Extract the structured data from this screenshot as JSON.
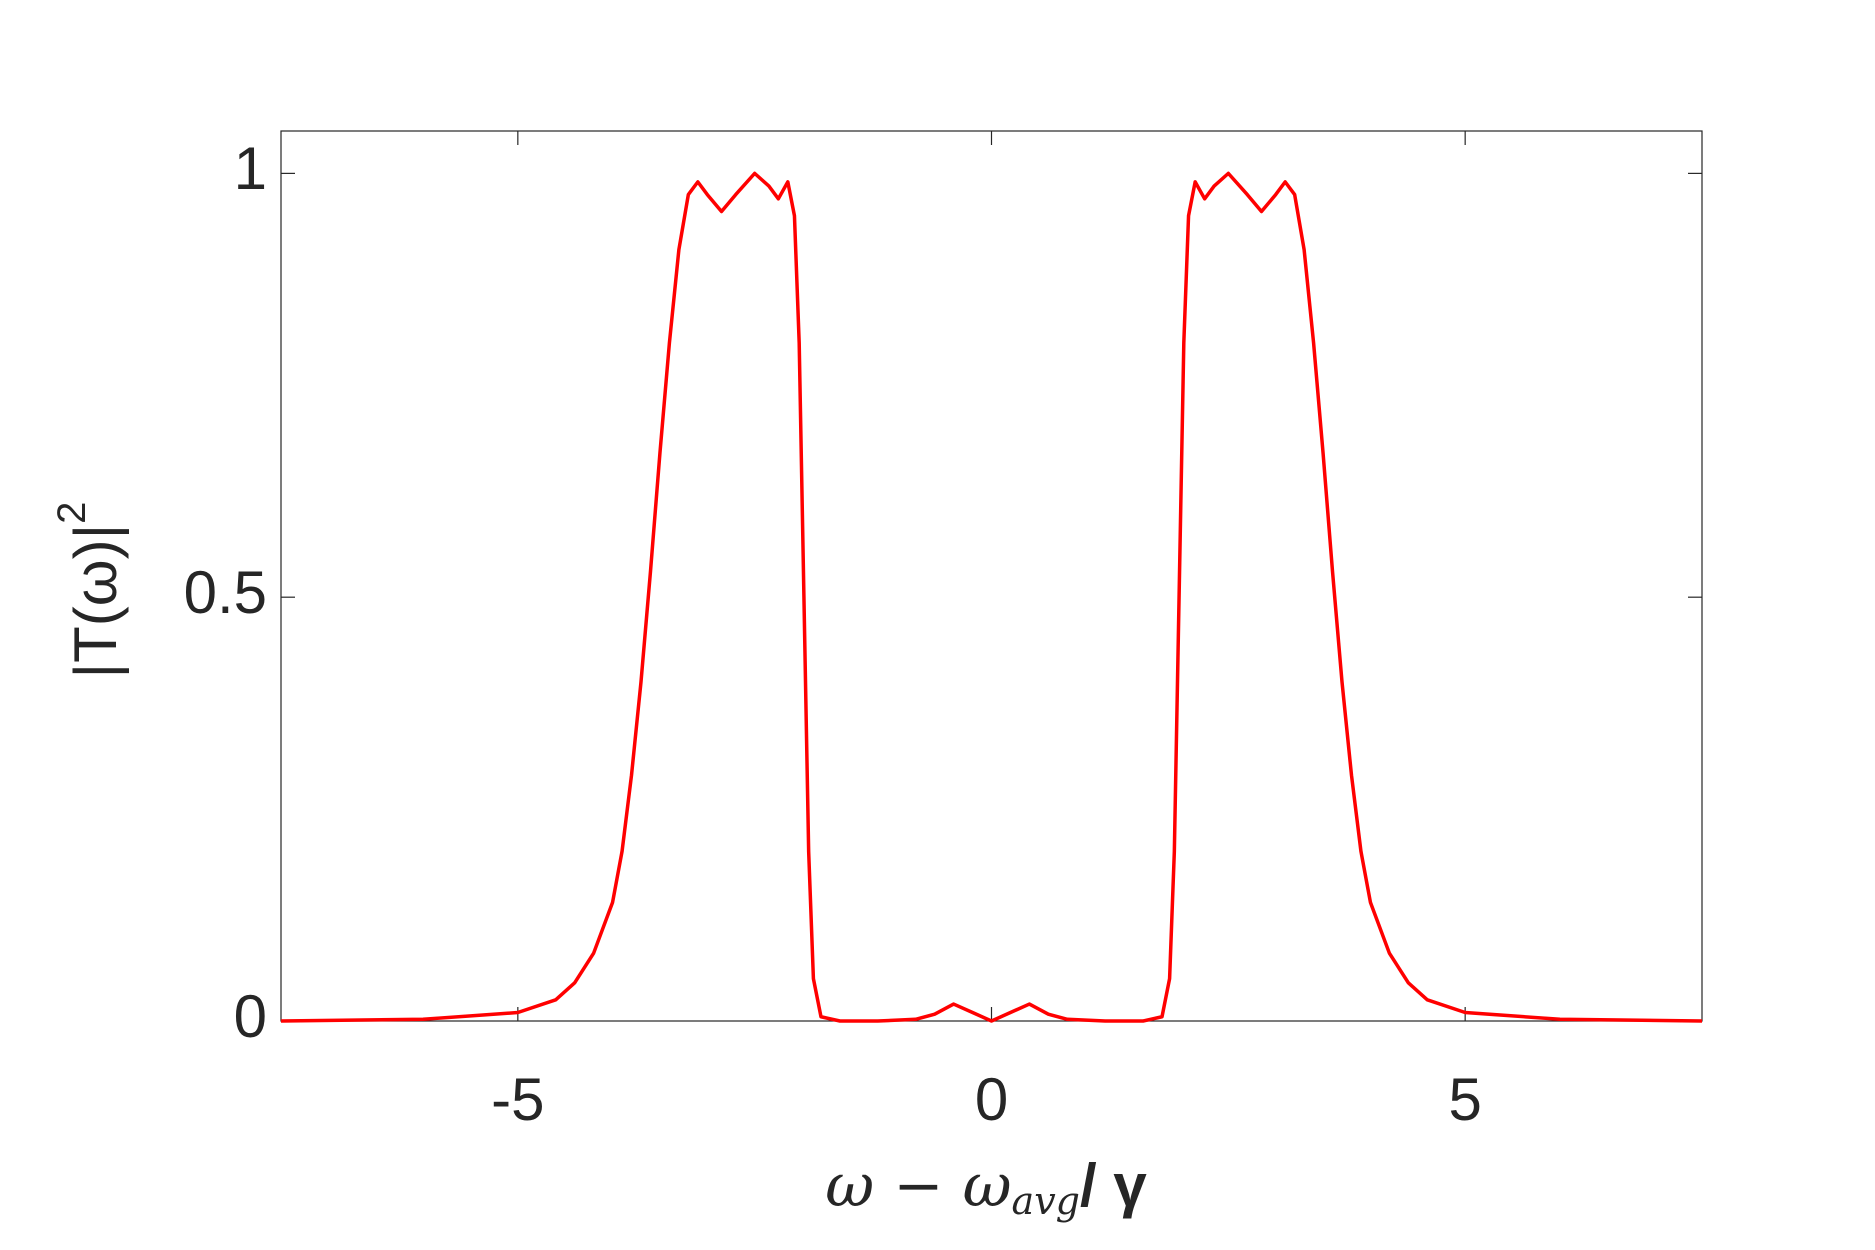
{
  "chart_data": {
    "type": "line",
    "xlabel": [
      "ω − ω",
      "avg",
      "/ γ"
    ],
    "ylabel": [
      "|T(ω)|",
      "2"
    ],
    "x": [
      -7.5,
      -6,
      -5,
      -4.6,
      -4.4,
      -4.2,
      -4.0,
      -3.9,
      -3.8,
      -3.7,
      -3.6,
      -3.5,
      -3.4,
      -3.3,
      -3.2,
      -3.1,
      -3.0,
      -2.85,
      -2.7,
      -2.5,
      -2.35,
      -2.25,
      -2.15,
      -2.08,
      -2.03,
      -1.98,
      -1.93,
      -1.88,
      -1.8,
      -1.6,
      -1.2,
      -0.8,
      -0.6,
      -0.4,
      -0.2,
      0,
      0.2,
      0.4,
      0.6,
      0.8,
      1.2,
      1.6,
      1.8,
      1.88,
      1.93,
      1.98,
      2.03,
      2.08,
      2.15,
      2.25,
      2.35,
      2.5,
      2.7,
      2.85,
      3.0,
      3.1,
      3.2,
      3.3,
      3.4,
      3.5,
      3.6,
      3.7,
      3.8,
      3.9,
      4.0,
      4.2,
      4.4,
      4.6,
      5,
      6,
      7.5
    ],
    "series": [
      {
        "color": "#ff0000",
        "values": [
          0,
          0.002,
          0.01,
          0.025,
          0.045,
          0.08,
          0.14,
          0.2,
          0.29,
          0.4,
          0.53,
          0.67,
          0.8,
          0.91,
          0.975,
          0.99,
          0.975,
          0.955,
          0.975,
          1.0,
          0.985,
          0.97,
          0.99,
          0.95,
          0.8,
          0.5,
          0.2,
          0.05,
          0.005,
          0,
          0,
          0.002,
          0.008,
          0.02,
          0.01,
          0,
          0.01,
          0.02,
          0.008,
          0.002,
          0,
          0,
          0.005,
          0.05,
          0.2,
          0.5,
          0.8,
          0.95,
          0.99,
          0.97,
          0.985,
          1.0,
          0.975,
          0.955,
          0.975,
          0.99,
          0.975,
          0.91,
          0.8,
          0.67,
          0.53,
          0.4,
          0.29,
          0.2,
          0.14,
          0.08,
          0.045,
          0.025,
          0.01,
          0.002,
          0
        ]
      }
    ],
    "xlim": [
      -7.5,
      7.5
    ],
    "xticks": [
      -5,
      0,
      5
    ],
    "ylim": [
      0,
      1.05
    ],
    "yticks": [
      0,
      0.5,
      1
    ]
  }
}
